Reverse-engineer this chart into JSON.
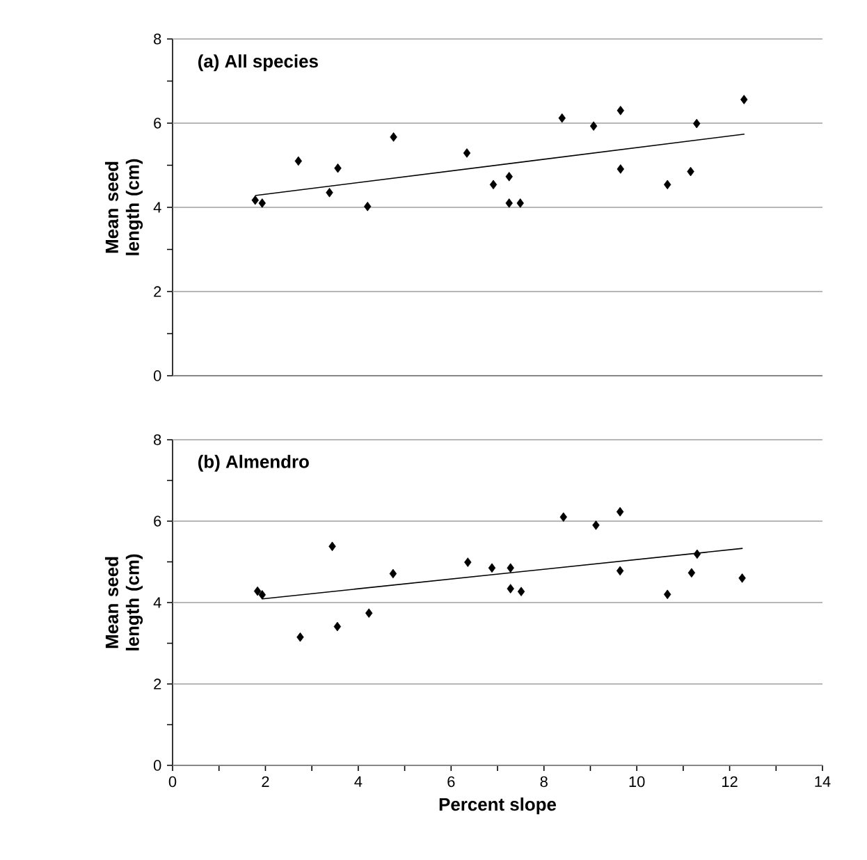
{
  "chart_data": [
    {
      "type": "scatter",
      "title": "(a) All species",
      "ylabel": "Mean seed length (cm)",
      "xlim": [
        0,
        14
      ],
      "ylim": [
        0,
        8
      ],
      "yticks": [
        0,
        {
          "value": 1,
          "label": null
        },
        2,
        {
          "value": 3,
          "label": null
        },
        4,
        {
          "value": 5,
          "label": null
        },
        6,
        {
          "value": 7,
          "label": null
        },
        8
      ],
      "grid": "y",
      "tick_labels": "y",
      "marker": "diamond",
      "series": [
        {
          "color": "#000000",
          "x": [
            1.78,
            1.93,
            2.71,
            3.38,
            3.56,
            4.2,
            4.76,
            6.34,
            6.91,
            7.25,
            7.25,
            7.49,
            8.39,
            9.07,
            9.65,
            9.65,
            10.66,
            11.16,
            11.29,
            12.31
          ],
          "values": [
            4.17,
            4.1,
            5.1,
            4.35,
            4.93,
            4.02,
            5.67,
            5.29,
            4.54,
            4.73,
            4.1,
            4.1,
            6.12,
            5.93,
            6.3,
            4.91,
            4.54,
            4.85,
            5.99,
            6.56
          ]
        },
        {
          "type": "line",
          "marker": "none",
          "color": "#000000",
          "x": [
            1.78,
            12.32
          ],
          "values": [
            4.28,
            5.74
          ]
        }
      ]
    },
    {
      "type": "scatter",
      "title": "(b) Almendro",
      "ylabel": "Mean seed length (cm)",
      "xlabel": "Percent slope",
      "xlim": [
        0,
        14
      ],
      "xticks": [
        0,
        {
          "value": 1,
          "label": null
        },
        2,
        {
          "value": 3,
          "label": null
        },
        4,
        {
          "value": 5,
          "label": null
        },
        6,
        {
          "value": 7,
          "label": null
        },
        8,
        {
          "value": 9,
          "label": null
        },
        10,
        {
          "value": 11,
          "label": null
        },
        12,
        {
          "value": 13,
          "label": null
        },
        14
      ],
      "ylim": [
        0,
        8
      ],
      "yticks": [
        0,
        {
          "value": 1,
          "label": null
        },
        2,
        {
          "value": 3,
          "label": null
        },
        4,
        {
          "value": 5,
          "label": null
        },
        6,
        {
          "value": 7,
          "label": null
        },
        8
      ],
      "grid": "y",
      "marker": "diamond",
      "series": [
        {
          "color": "#000000",
          "x": [
            1.83,
            1.93,
            2.75,
            3.44,
            3.55,
            4.23,
            4.75,
            6.36,
            6.88,
            7.28,
            7.28,
            7.51,
            8.42,
            9.12,
            9.64,
            9.64,
            10.66,
            11.18,
            11.3,
            12.27
          ],
          "values": [
            4.28,
            4.19,
            3.15,
            5.38,
            3.41,
            3.74,
            4.71,
            4.99,
            4.85,
            4.85,
            4.34,
            4.27,
            6.1,
            5.9,
            6.23,
            4.78,
            4.2,
            4.73,
            5.19,
            4.6
          ]
        },
        {
          "type": "line",
          "marker": "none",
          "color": "#000000",
          "x": [
            1.93,
            12.28
          ],
          "values": [
            4.09,
            5.33
          ]
        }
      ]
    }
  ]
}
